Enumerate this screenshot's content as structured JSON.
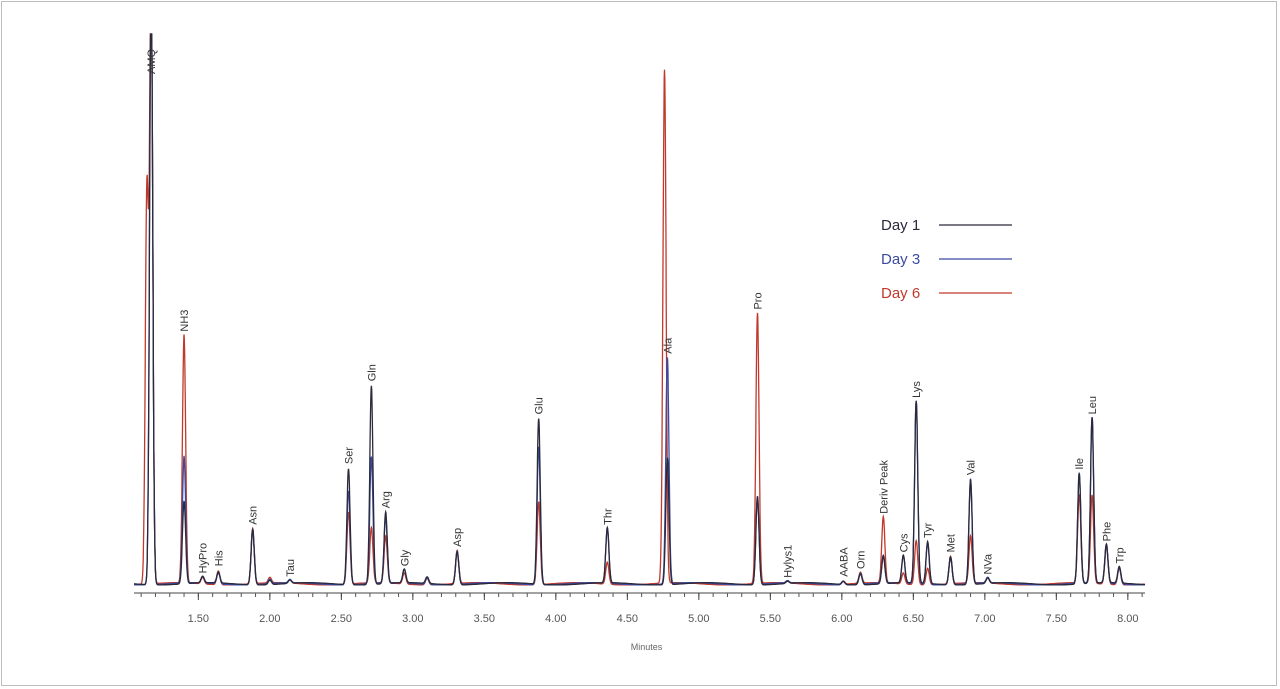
{
  "chart_data": {
    "type": "line",
    "title": "",
    "xlabel": "Minutes",
    "ylabel": "",
    "xlim": [
      1.05,
      8.12
    ],
    "ylim": [
      0,
      1
    ],
    "grid": false,
    "legend_placement": "right",
    "x_ticks": [
      "1.50",
      "2.00",
      "2.50",
      "3.00",
      "3.50",
      "4.00",
      "4.50",
      "5.00",
      "5.50",
      "6.00",
      "6.50",
      "7.00",
      "7.50",
      "8.00"
    ],
    "series": [
      {
        "name": "Day 1",
        "color": "#2a2a3c"
      },
      {
        "name": "Day 3",
        "color": "#3b4aa0"
      },
      {
        "name": "Day 6",
        "color": "#c0392b"
      }
    ],
    "peaks": [
      {
        "label": "AMQ",
        "x": 1.17,
        "heights": [
          1.1,
          1.1,
          1.1
        ]
      },
      {
        "label": "",
        "x": 1.14,
        "heights": [
          0.0,
          0.0,
          0.71
        ]
      },
      {
        "label": "NH3",
        "x": 1.4,
        "heights": [
          0.15,
          0.23,
          0.45
        ]
      },
      {
        "label": "HyPro",
        "x": 1.53,
        "heights": [
          0.012,
          0.012,
          0.012
        ]
      },
      {
        "label": "His",
        "x": 1.64,
        "heights": [
          0.02,
          0.02,
          0.025
        ]
      },
      {
        "label": "Asn",
        "x": 1.88,
        "heights": [
          0.1,
          0.1,
          0.1
        ]
      },
      {
        "label": "",
        "x": 2.0,
        "heights": [
          0.008,
          0.008,
          0.01
        ]
      },
      {
        "label": "Tau",
        "x": 2.14,
        "heights": [
          0.006,
          0.006,
          0.006
        ]
      },
      {
        "label": "Ser",
        "x": 2.55,
        "heights": [
          0.21,
          0.17,
          0.13
        ]
      },
      {
        "label": "Gln",
        "x": 2.71,
        "heights": [
          0.36,
          0.23,
          0.1
        ]
      },
      {
        "label": "Arg",
        "x": 2.81,
        "heights": [
          0.13,
          0.12,
          0.085
        ]
      },
      {
        "label": "Gly",
        "x": 2.94,
        "heights": [
          0.025,
          0.025,
          0.02
        ]
      },
      {
        "label": "",
        "x": 3.1,
        "heights": [
          0.012,
          0.012,
          0.012
        ]
      },
      {
        "label": "Asp",
        "x": 3.31,
        "heights": [
          0.06,
          0.06,
          0.06
        ]
      },
      {
        "label": "Glu",
        "x": 3.88,
        "heights": [
          0.3,
          0.25,
          0.15
        ]
      },
      {
        "label": "Thr",
        "x": 4.36,
        "heights": [
          0.1,
          0.1,
          0.04
        ]
      },
      {
        "label": "",
        "x": 4.76,
        "heights": [
          0.0,
          0.0,
          0.93
        ]
      },
      {
        "label": "Ala",
        "x": 4.78,
        "heights": [
          0.23,
          0.41,
          0.0
        ]
      },
      {
        "label": "Pro",
        "x": 5.41,
        "heights": [
          0.16,
          0.16,
          0.49
        ]
      },
      {
        "label": "Hylys1",
        "x": 5.62,
        "heights": [
          0.004,
          0.004,
          0.004
        ]
      },
      {
        "label": "AABA",
        "x": 6.01,
        "heights": [
          0.006,
          0.006,
          0.006
        ]
      },
      {
        "label": "Orn",
        "x": 6.13,
        "heights": [
          0.02,
          0.02,
          0.02
        ]
      },
      {
        "label": "Deriv Peak",
        "x": 6.29,
        "heights": [
          0.05,
          0.05,
          0.12
        ]
      },
      {
        "label": "Cys",
        "x": 6.43,
        "heights": [
          0.05,
          0.05,
          0.02
        ]
      },
      {
        "label": "Lys",
        "x": 6.52,
        "heights": [
          0.33,
          0.33,
          0.08
        ]
      },
      {
        "label": "Tyr",
        "x": 6.6,
        "heights": [
          0.076,
          0.076,
          0.03
        ]
      },
      {
        "label": "Met",
        "x": 6.76,
        "heights": [
          0.05,
          0.05,
          0.05
        ]
      },
      {
        "label": "Val",
        "x": 6.9,
        "heights": [
          0.19,
          0.19,
          0.085
        ]
      },
      {
        "label": "NVa",
        "x": 7.02,
        "heights": [
          0.01,
          0.01,
          0.01
        ]
      },
      {
        "label": "Ile",
        "x": 7.66,
        "heights": [
          0.2,
          0.2,
          0.16
        ]
      },
      {
        "label": "Leu",
        "x": 7.75,
        "heights": [
          0.3,
          0.3,
          0.16
        ]
      },
      {
        "label": "Phe",
        "x": 7.85,
        "heights": [
          0.07,
          0.07,
          0.07
        ]
      },
      {
        "label": "Trp",
        "x": 7.94,
        "heights": [
          0.03,
          0.03,
          0.03
        ]
      }
    ]
  }
}
